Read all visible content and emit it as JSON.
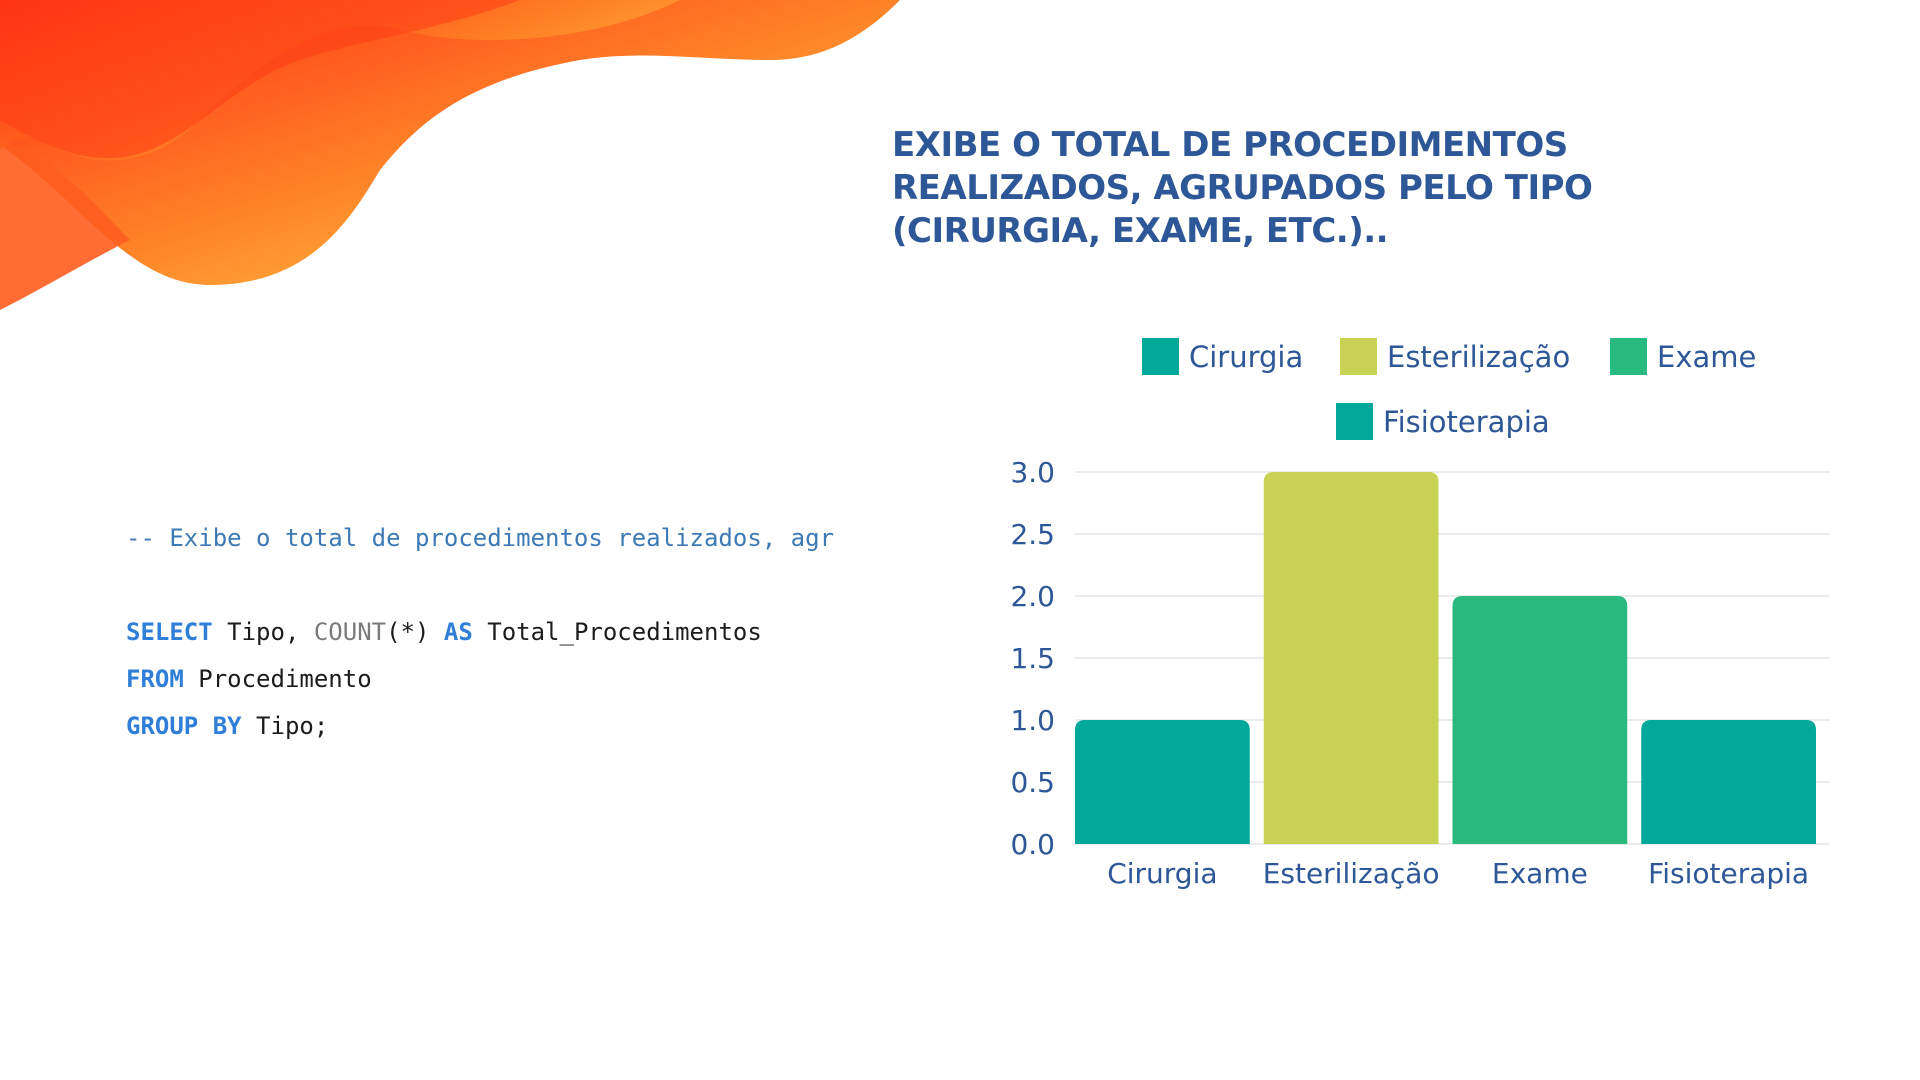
{
  "slide": {
    "title": "EXIBE O TOTAL DE PROCEDIMENTOS REALIZADOS, AGRUPADOS PELO TIPO (CIRURGIA, EXAME, ETC.)..",
    "accent_colors": {
      "title": "#2d5797",
      "wave_dark": "#ff3a14",
      "wave_light": "#ffd149"
    }
  },
  "code": {
    "comment": "-- Exibe o total de procedimentos realizados, agr",
    "line1": {
      "kw_select": "SELECT",
      "t1": " Tipo, ",
      "fn_count": "COUNT",
      "t2": "(*) ",
      "kw_as": "AS",
      "t3": " Total_Procedimentos"
    },
    "line2": {
      "kw_from": "FROM",
      "t1": " Procedimento"
    },
    "line3": {
      "kw_group": "GROUP BY",
      "t1": " Tipo;"
    }
  },
  "chart_data": {
    "type": "bar",
    "categories": [
      "Cirurgia",
      "Esterilização",
      "Exame",
      "Fisioterapia"
    ],
    "values": [
      1,
      3,
      2,
      1
    ],
    "colors": [
      "#02a899",
      "#c8d355",
      "#2aba80",
      "#02a899"
    ],
    "ylim": [
      0,
      3
    ],
    "yticks": [
      "0.0",
      "0.5",
      "1.0",
      "1.5",
      "2.0",
      "2.5",
      "3.0"
    ],
    "legend": [
      "Cirurgia",
      "Esterilização",
      "Exame",
      "Fisioterapia"
    ],
    "legend_position": "top-center",
    "grid": true,
    "xlabel": "",
    "ylabel": ""
  }
}
